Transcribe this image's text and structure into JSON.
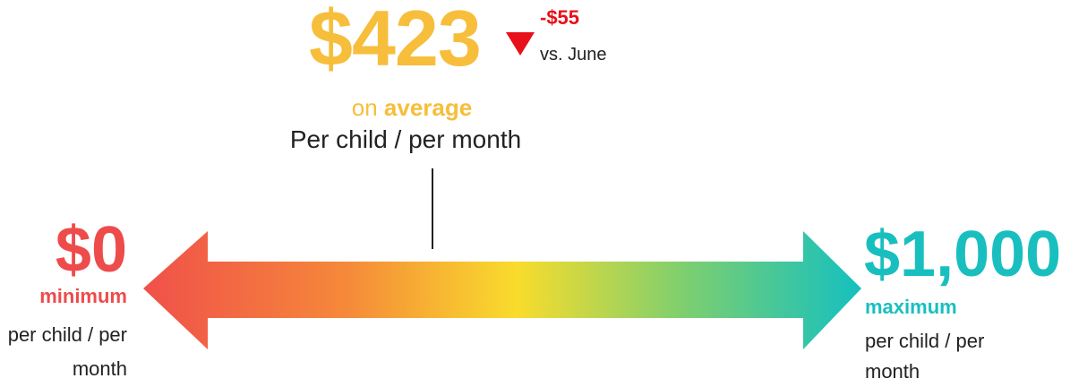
{
  "average": {
    "value": "$423",
    "change": "-$55",
    "comparison": "vs. June",
    "on": "on",
    "label": "average",
    "unit": "Per child / per month"
  },
  "minimum": {
    "value": "$0",
    "label": "minimum",
    "unit": "per child / per month"
  },
  "maximum": {
    "value": "$1,000",
    "label": "maximum",
    "unit": "per child / per month"
  }
}
